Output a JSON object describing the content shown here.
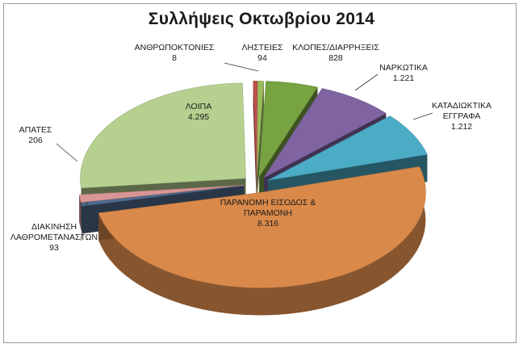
{
  "chart_data": {
    "type": "pie",
    "title": "Συλλήψεις Οκτωβρίου 2014",
    "slices": [
      {
        "name": "ΑΝΘΡΩΠΟΚΤΟΝΙΕΣ",
        "value_label": "8",
        "value": 8,
        "color": "#c0504d"
      },
      {
        "name": "ΛΗΣΤΕΙΕΣ",
        "value_label": "94",
        "value": 94,
        "color": "#9bbb59"
      },
      {
        "name": "ΚΛΟΠΕΣ/ΔΙΑΡΡΗΞΕΙΣ",
        "value_label": "828",
        "value": 828,
        "color": "#77a340"
      },
      {
        "name": "ΝΑΡΚΩΤΙΚΑ",
        "value_label": "1.221",
        "value": 1221,
        "color": "#8064a2"
      },
      {
        "name": "ΚΑΤΑΔΙΩΚΤΙΚΑ ΕΓΓΡΑΦΑ",
        "value_label": "1.212",
        "value": 1212,
        "color": "#4bacc6"
      },
      {
        "name": "ΠΑΡΑΝΟΜΗ ΕΙΣΟΔΟΣ & ΠΑΡΑΜΟΝΗ",
        "value_label": "8.316",
        "value": 8316,
        "color": "#d9894a"
      },
      {
        "name": "ΔΙΑΚΙΝΗΣΗ ΛΑΘΡΟΜΕΤΑΝΑΣΤΩΝ",
        "value_label": "93",
        "value": 93,
        "color": "#4f6b8f"
      },
      {
        "name": "ΑΠΑΤΕΣ",
        "value_label": "206",
        "value": 206,
        "color": "#d99694"
      },
      {
        "name": "ΛΟΙΠΑ",
        "value_label": "4.295",
        "value": 4295,
        "color": "#b6d08f"
      }
    ],
    "legend": "none"
  }
}
